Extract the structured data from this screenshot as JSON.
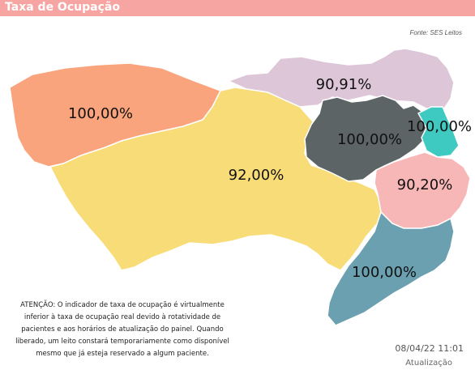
{
  "header": {
    "title": "Taxa de Ocupação"
  },
  "source": "Fonte: SES Leitos",
  "regions": [
    {
      "id": "west",
      "label": "100,00%",
      "color": "#f9a47c"
    },
    {
      "id": "north",
      "label": "90,91%",
      "color": "#dcc6d8"
    },
    {
      "id": "center",
      "label": "92,00%",
      "color": "#f8dc77"
    },
    {
      "id": "dark",
      "label": "100,00%",
      "color": "#5c6466"
    },
    {
      "id": "teal",
      "label": "100,00%",
      "color": "#3ec9c1"
    },
    {
      "id": "pink",
      "label": "90,20%",
      "color": "#f8b7b7"
    },
    {
      "id": "south",
      "label": "100,00%",
      "color": "#6aa0b0"
    }
  ],
  "notice": "ATENÇÃO: O indicador de taxa de ocupação é virtualmente inferior à taxa de ocupação real devido à rotatividade de pacientes e aos horários de atualização do painel.  Quando liberado, um leito constará temporariamente como disponível mesmo que já esteja reservado a algum paciente.",
  "timestamp": "08/04/22 11:01",
  "update_label": "Atualização"
}
